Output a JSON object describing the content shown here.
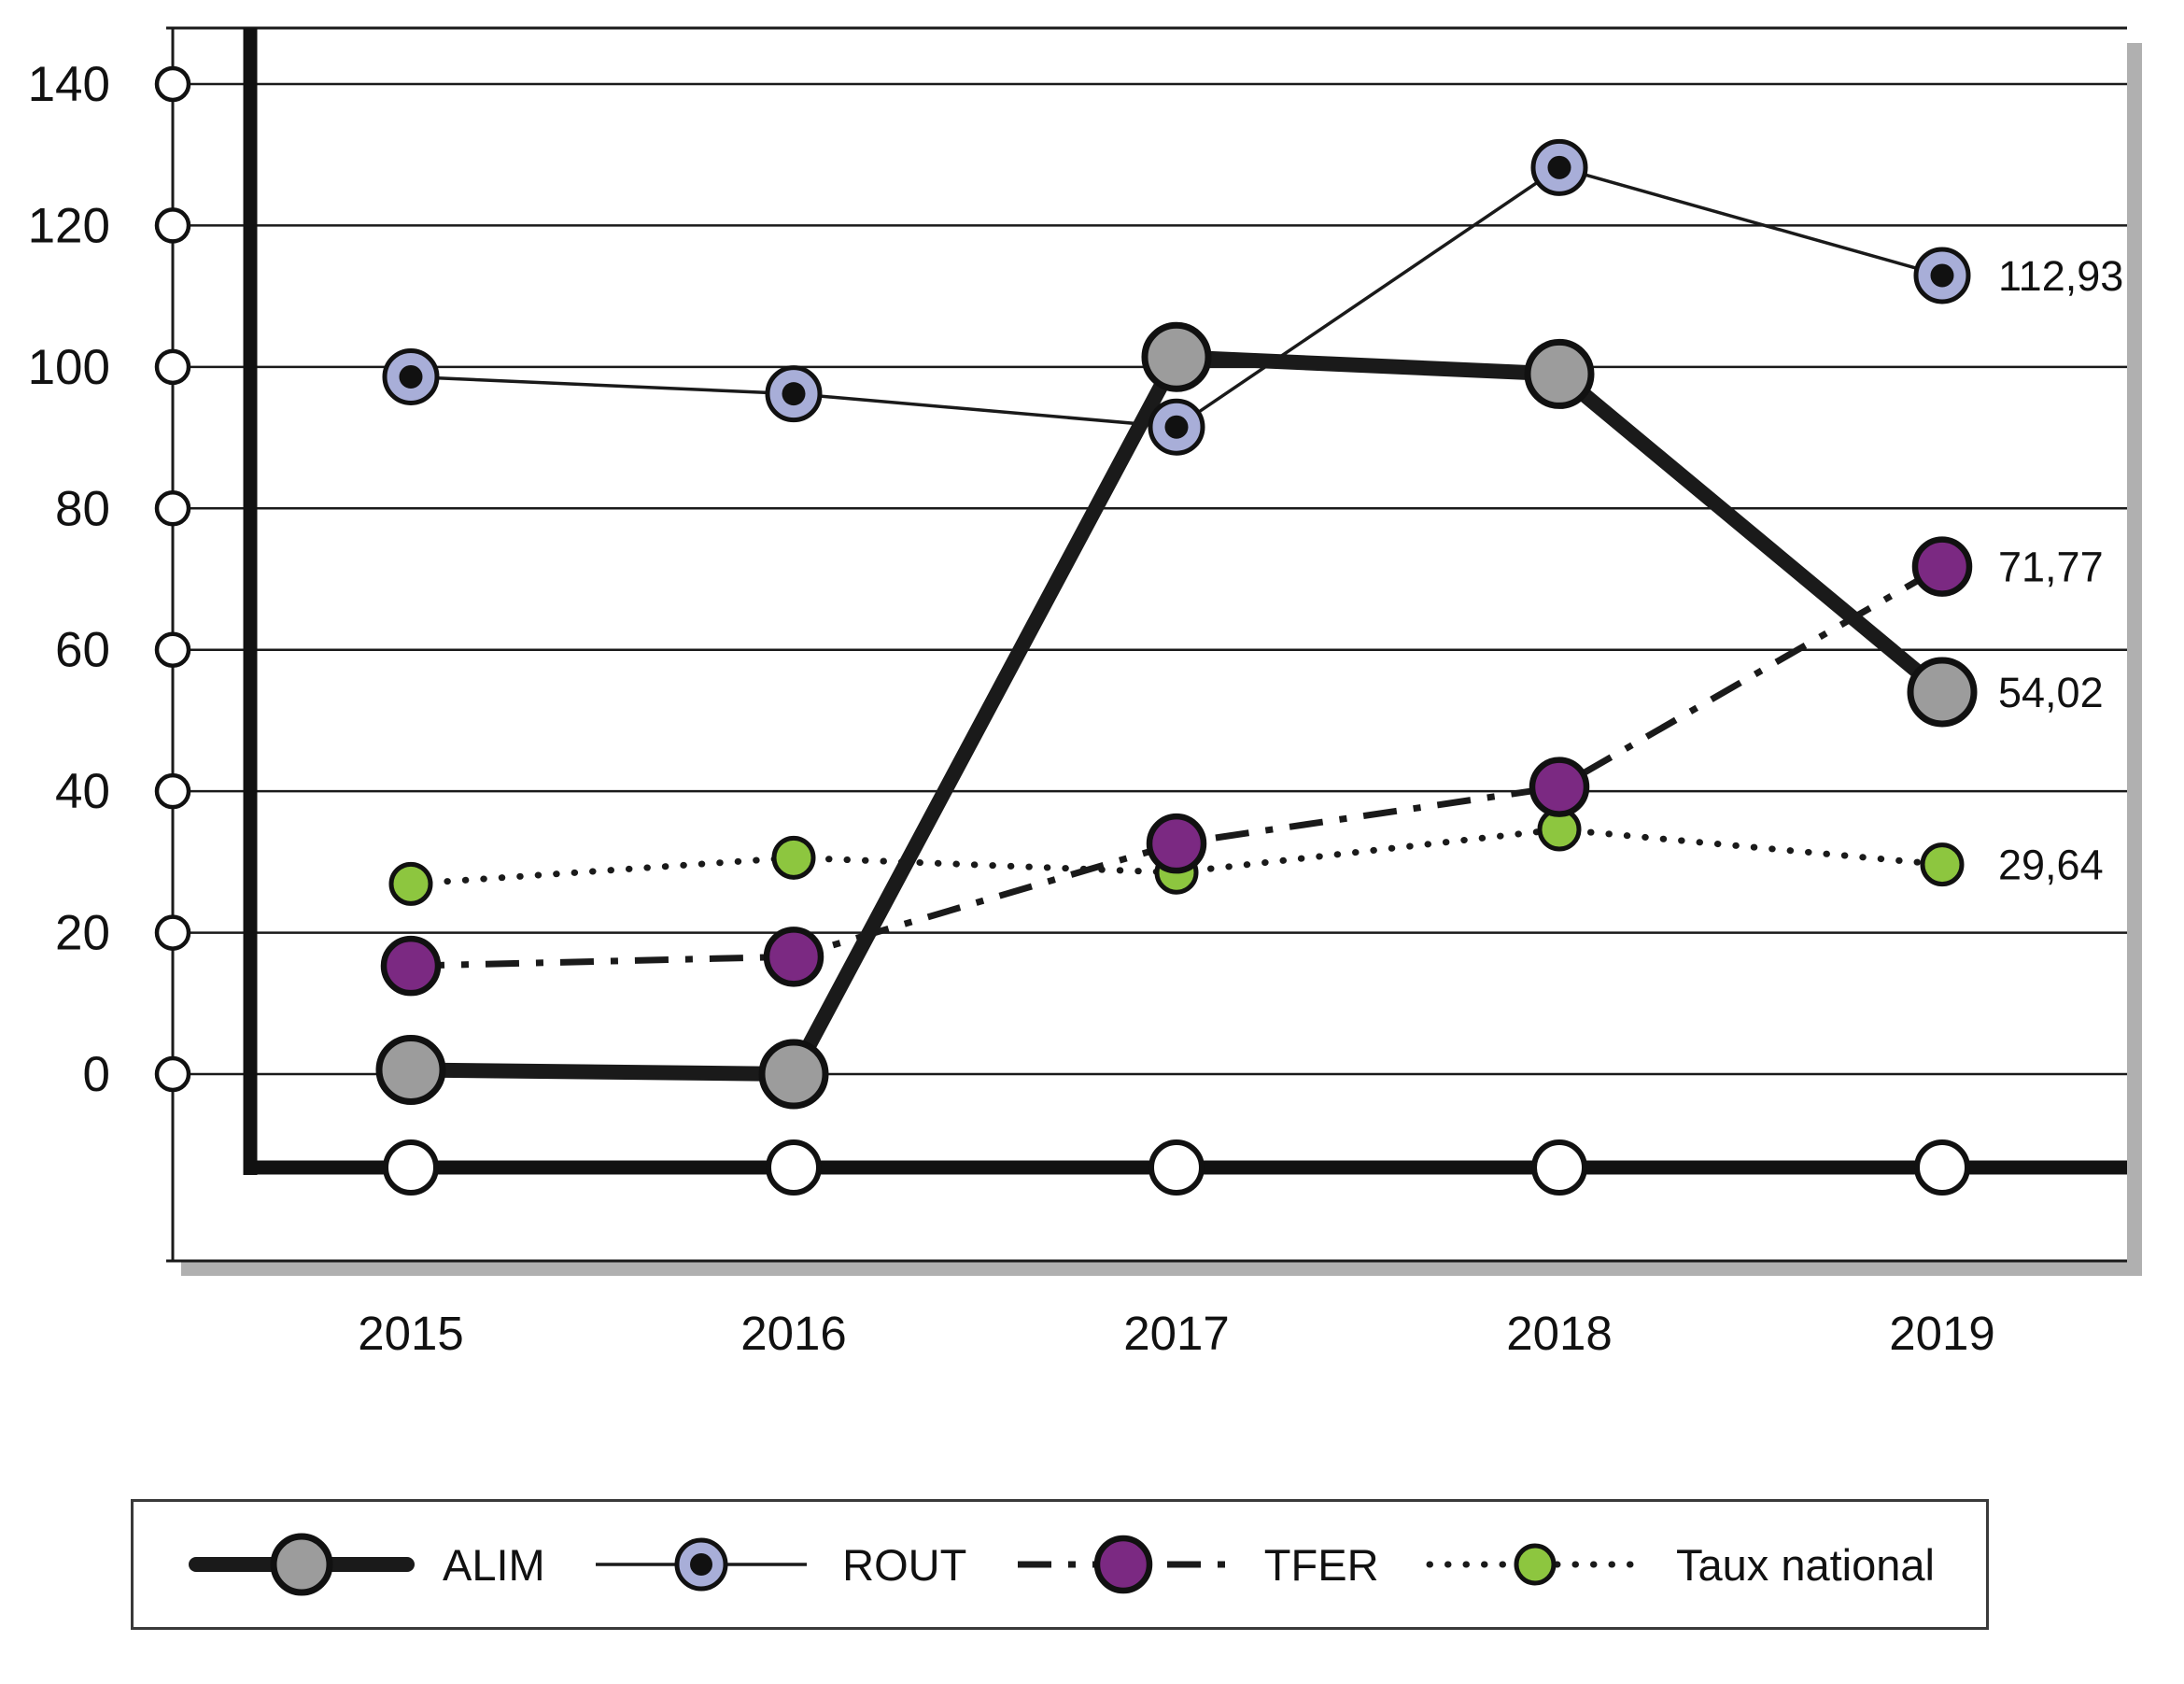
{
  "chart_data": {
    "type": "line",
    "x_labels": [
      "2015",
      "2016",
      "2017",
      "2018",
      "2019"
    ],
    "ylim": [
      0,
      140
    ],
    "ytick_step": 20,
    "ytick_labels": [
      "0",
      "20",
      "40",
      "60",
      "80",
      "100",
      "120",
      "140"
    ],
    "grid": true,
    "legend_position": "bottom",
    "colors": {
      "line": "#1a1a1a",
      "alim_marker": "#9c9c9c",
      "rout_marker": "#a8aed8",
      "rout_marker_core": "#111111",
      "tfer_marker": "#7b2982",
      "taux_marker": "#8dc63f",
      "axis_marker": "#ffffff",
      "panel_shadow": "#b0b0b0"
    },
    "series": [
      {
        "name": "ALIM",
        "style": "solid-thick",
        "values": [
          0.6,
          0,
          101.4,
          99,
          54.02
        ],
        "end_label": "54,02",
        "marker_fill": "#9c9c9c"
      },
      {
        "name": "ROUT",
        "style": "solid-thin",
        "values": [
          98.6,
          96.2,
          91.5,
          128.2,
          112.93
        ],
        "end_label": "112,93",
        "marker_fill": "#a8aed8",
        "marker_inner": "#111111"
      },
      {
        "name": "TFER",
        "style": "dash-dot",
        "values": [
          15.3,
          16.6,
          32.6,
          40.6,
          71.77
        ],
        "end_label": "71,77",
        "marker_fill": "#7b2982"
      },
      {
        "name": "Taux national",
        "style": "dotted",
        "values": [
          26.9,
          30.6,
          28.5,
          34.6,
          29.64
        ],
        "end_label": "29,64",
        "marker_fill": "#8dc63f"
      }
    ]
  },
  "legend": {
    "items": [
      "ALIM",
      "ROUT",
      "TFER",
      "Taux national"
    ]
  }
}
